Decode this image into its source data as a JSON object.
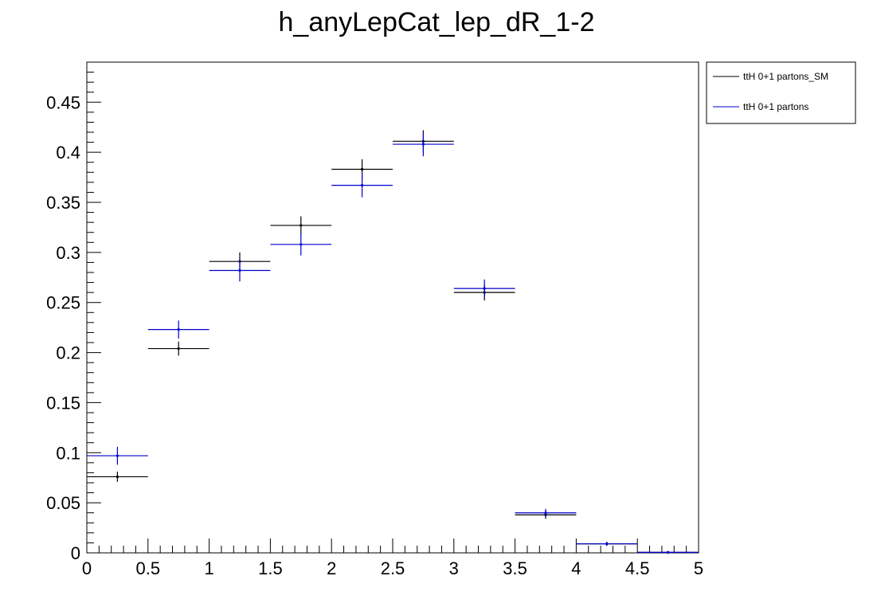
{
  "chart_data": {
    "type": "scatter",
    "title": "h_anyLepCat_lep_dR_1-2",
    "xlabel": "",
    "ylabel": "",
    "xlim": [
      0,
      5
    ],
    "ylim": [
      0,
      0.49
    ],
    "x_ticks": [
      "0",
      "0.5",
      "1",
      "1.5",
      "2",
      "2.5",
      "3",
      "3.5",
      "4",
      "4.5",
      "5"
    ],
    "x_tick_values": [
      0,
      0.5,
      1,
      1.5,
      2,
      2.5,
      3,
      3.5,
      4,
      4.5,
      5
    ],
    "y_ticks": [
      "0",
      "0.05",
      "0.1",
      "0.15",
      "0.2",
      "0.25",
      "0.3",
      "0.35",
      "0.4",
      "0.45"
    ],
    "y_tick_values": [
      0,
      0.05,
      0.1,
      0.15,
      0.2,
      0.25,
      0.3,
      0.35,
      0.4,
      0.45
    ],
    "bin_edges": [
      0,
      0.5,
      1,
      1.5,
      2,
      2.5,
      3,
      3.5,
      4,
      4.5,
      5
    ],
    "grid": false,
    "legend_position": "top-right, outside plot",
    "series": [
      {
        "name": "ttH 0+1 partons_SM",
        "color": "#000000",
        "values": [
          0.076,
          0.204,
          0.291,
          0.327,
          0.383,
          0.411,
          0.26,
          0.038,
          0.009,
          0.0005
        ],
        "errors": [
          0.005,
          0.007,
          0.009,
          0.009,
          0.01,
          0.011,
          0.008,
          0.004,
          0.002,
          0.0005
        ]
      },
      {
        "name": "ttH 0+1 partons",
        "color": "#0000cc",
        "values": [
          0.097,
          0.223,
          0.282,
          0.308,
          0.367,
          0.408,
          0.264,
          0.04,
          0.009,
          0.0005
        ],
        "errors": [
          0.009,
          0.009,
          0.011,
          0.011,
          0.012,
          0.012,
          0.009,
          0.004,
          0.002,
          0.0005
        ]
      }
    ]
  }
}
